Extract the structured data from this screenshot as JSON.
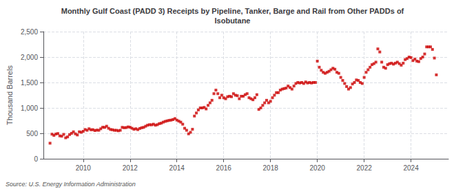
{
  "chart_data": {
    "type": "scatter",
    "title": "Monthly Gulf Coast (PADD 3) Receipts by Pipeline, Tanker, Barge and Rail from Other PADDs of\nIsobutane",
    "ylabel": "Thousand Barrels",
    "source": "Source: U.S. Energy Information Administration",
    "color": "#cc0000",
    "marker": "square",
    "grid": true,
    "xlim": [
      2008.3,
      2025.6
    ],
    "xticks": [
      2010,
      2012,
      2014,
      2016,
      2018,
      2020,
      2022,
      2024
    ],
    "ylim": [
      0,
      2500
    ],
    "yticks": [
      0,
      500,
      {
        "value": 1000,
        "label": "1,000"
      },
      {
        "value": 1500,
        "label": "1,500"
      },
      {
        "value": 2000,
        "label": "2,000"
      },
      {
        "value": 2500,
        "label": "2,500"
      }
    ],
    "x": [
      2008.583,
      2008.667,
      2008.75,
      2008.833,
      2008.917,
      2009.0,
      2009.083,
      2009.167,
      2009.25,
      2009.333,
      2009.417,
      2009.5,
      2009.583,
      2009.667,
      2009.75,
      2009.833,
      2009.917,
      2010.0,
      2010.083,
      2010.167,
      2010.25,
      2010.333,
      2010.417,
      2010.5,
      2010.583,
      2010.667,
      2010.75,
      2010.833,
      2010.917,
      2011.0,
      2011.083,
      2011.167,
      2011.25,
      2011.333,
      2011.417,
      2011.5,
      2011.583,
      2011.667,
      2011.75,
      2011.833,
      2011.917,
      2012.0,
      2012.083,
      2012.167,
      2012.25,
      2012.333,
      2012.417,
      2012.5,
      2012.583,
      2012.667,
      2012.75,
      2012.833,
      2012.917,
      2013.0,
      2013.083,
      2013.167,
      2013.25,
      2013.333,
      2013.417,
      2013.5,
      2013.583,
      2013.667,
      2013.75,
      2013.833,
      2013.917,
      2014.0,
      2014.083,
      2014.167,
      2014.25,
      2014.333,
      2014.417,
      2014.5,
      2014.583,
      2014.667,
      2014.75,
      2014.833,
      2014.917,
      2015.0,
      2015.083,
      2015.167,
      2015.25,
      2015.333,
      2015.417,
      2015.5,
      2015.583,
      2015.667,
      2015.75,
      2015.833,
      2015.917,
      2016.0,
      2016.083,
      2016.167,
      2016.25,
      2016.333,
      2016.417,
      2016.5,
      2016.583,
      2016.667,
      2016.75,
      2016.833,
      2016.917,
      2017.0,
      2017.083,
      2017.167,
      2017.25,
      2017.333,
      2017.417,
      2017.5,
      2017.583,
      2017.667,
      2017.75,
      2017.833,
      2017.917,
      2018.0,
      2018.083,
      2018.167,
      2018.25,
      2018.333,
      2018.417,
      2018.5,
      2018.583,
      2018.667,
      2018.75,
      2018.833,
      2018.917,
      2019.0,
      2019.083,
      2019.167,
      2019.25,
      2019.333,
      2019.417,
      2019.5,
      2019.583,
      2019.667,
      2019.75,
      2019.833,
      2019.917,
      2020.0,
      2020.083,
      2020.167,
      2020.25,
      2020.333,
      2020.417,
      2020.5,
      2020.583,
      2020.667,
      2020.75,
      2020.833,
      2020.917,
      2021.0,
      2021.083,
      2021.167,
      2021.25,
      2021.333,
      2021.417,
      2021.5,
      2021.583,
      2021.667,
      2021.75,
      2021.833,
      2021.917,
      2022.0,
      2022.083,
      2022.167,
      2022.25,
      2022.333,
      2022.417,
      2022.5,
      2022.583,
      2022.667,
      2022.75,
      2022.833,
      2022.917,
      2023.0,
      2023.083,
      2023.167,
      2023.25,
      2023.333,
      2023.417,
      2023.5,
      2023.583,
      2023.667,
      2023.75,
      2023.833,
      2023.917,
      2024.0,
      2024.083,
      2024.167,
      2024.25,
      2024.333,
      2024.417,
      2024.5,
      2024.583,
      2024.667,
      2024.75,
      2024.833,
      2024.917,
      2025.0,
      2025.083
    ],
    "values": [
      306,
      484,
      460,
      487,
      496,
      450,
      444,
      480,
      412,
      430,
      475,
      500,
      530,
      490,
      468,
      530,
      521,
      540,
      575,
      560,
      590,
      570,
      572,
      555,
      564,
      560,
      590,
      620,
      617,
      640,
      600,
      576,
      570,
      560,
      560,
      550,
      560,
      618,
      610,
      613,
      626,
      620,
      600,
      580,
      590,
      573,
      596,
      610,
      618,
      640,
      660,
      670,
      667,
      680,
      660,
      670,
      690,
      700,
      720,
      735,
      745,
      755,
      760,
      770,
      790,
      760,
      740,
      720,
      680,
      600,
      560,
      490,
      520,
      580,
      840,
      900,
      960,
      1000,
      1000,
      1010,
      980,
      1050,
      1100,
      1150,
      1280,
      1350,
      1280,
      1200,
      1250,
      1200,
      1180,
      1220,
      1230,
      1220,
      1280,
      1250,
      1240,
      1180,
      1230,
      1230,
      1260,
      1280,
      1200,
      1180,
      1160,
      1200,
      1260,
      970,
      1000,
      1050,
      1100,
      1150,
      1100,
      1130,
      1200,
      1250,
      1300,
      1300,
      1350,
      1370,
      1380,
      1390,
      1430,
      1400,
      1370,
      1430,
      1480,
      1500,
      1490,
      1500,
      1480,
      1510,
      1490,
      1500,
      1490,
      1500,
      1500,
      1920,
      1800,
      1740,
      1700,
      1680,
      1700,
      1720,
      1750,
      1780,
      1760,
      1700,
      1680,
      1600,
      1540,
      1480,
      1420,
      1370,
      1400,
      1470,
      1500,
      1550,
      1540,
      1500,
      1480,
      1600,
      1700,
      1750,
      1800,
      1850,
      1870,
      1900,
      2160,
      2100,
      1900,
      1800,
      1780,
      1850,
      1870,
      1880,
      1860,
      1880,
      1900,
      1870,
      1840,
      1880,
      1950,
      1970,
      2000,
      1990,
      1930,
      1960,
      1920,
      1910,
      1970,
      2000,
      2060,
      2200,
      2200,
      2200,
      2150,
      1980,
      1650
    ]
  }
}
